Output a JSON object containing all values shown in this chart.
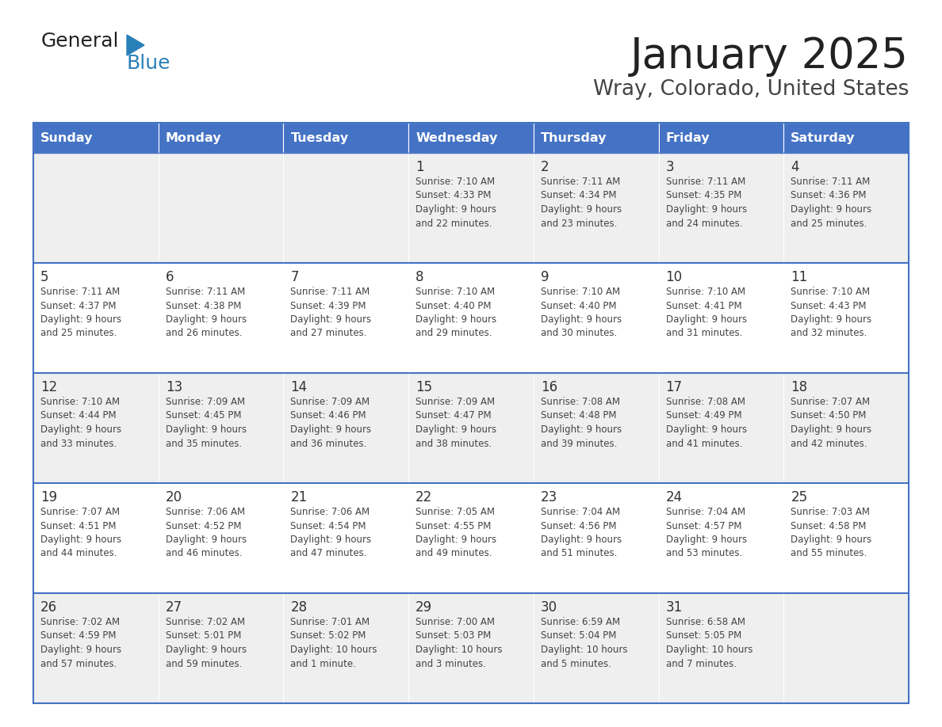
{
  "title": "January 2025",
  "subtitle": "Wray, Colorado, United States",
  "header_bg": "#4472C4",
  "header_text_color": "#FFFFFF",
  "header_days": [
    "Sunday",
    "Monday",
    "Tuesday",
    "Wednesday",
    "Thursday",
    "Friday",
    "Saturday"
  ],
  "row_bg_odd": "#EFEFEF",
  "row_bg_even": "#FFFFFF",
  "border_color": "#4472C4",
  "day_num_color": "#333333",
  "cell_text_color": "#444444",
  "title_color": "#222222",
  "subtitle_color": "#444444",
  "logo_general_color": "#222222",
  "logo_blue_color": "#2980B9",
  "logo_triangle_color": "#2980B9",
  "calendar": [
    [
      {
        "day": "",
        "info": ""
      },
      {
        "day": "",
        "info": ""
      },
      {
        "day": "",
        "info": ""
      },
      {
        "day": "1",
        "info": "Sunrise: 7:10 AM\nSunset: 4:33 PM\nDaylight: 9 hours\nand 22 minutes."
      },
      {
        "day": "2",
        "info": "Sunrise: 7:11 AM\nSunset: 4:34 PM\nDaylight: 9 hours\nand 23 minutes."
      },
      {
        "day": "3",
        "info": "Sunrise: 7:11 AM\nSunset: 4:35 PM\nDaylight: 9 hours\nand 24 minutes."
      },
      {
        "day": "4",
        "info": "Sunrise: 7:11 AM\nSunset: 4:36 PM\nDaylight: 9 hours\nand 25 minutes."
      }
    ],
    [
      {
        "day": "5",
        "info": "Sunrise: 7:11 AM\nSunset: 4:37 PM\nDaylight: 9 hours\nand 25 minutes."
      },
      {
        "day": "6",
        "info": "Sunrise: 7:11 AM\nSunset: 4:38 PM\nDaylight: 9 hours\nand 26 minutes."
      },
      {
        "day": "7",
        "info": "Sunrise: 7:11 AM\nSunset: 4:39 PM\nDaylight: 9 hours\nand 27 minutes."
      },
      {
        "day": "8",
        "info": "Sunrise: 7:10 AM\nSunset: 4:40 PM\nDaylight: 9 hours\nand 29 minutes."
      },
      {
        "day": "9",
        "info": "Sunrise: 7:10 AM\nSunset: 4:40 PM\nDaylight: 9 hours\nand 30 minutes."
      },
      {
        "day": "10",
        "info": "Sunrise: 7:10 AM\nSunset: 4:41 PM\nDaylight: 9 hours\nand 31 minutes."
      },
      {
        "day": "11",
        "info": "Sunrise: 7:10 AM\nSunset: 4:43 PM\nDaylight: 9 hours\nand 32 minutes."
      }
    ],
    [
      {
        "day": "12",
        "info": "Sunrise: 7:10 AM\nSunset: 4:44 PM\nDaylight: 9 hours\nand 33 minutes."
      },
      {
        "day": "13",
        "info": "Sunrise: 7:09 AM\nSunset: 4:45 PM\nDaylight: 9 hours\nand 35 minutes."
      },
      {
        "day": "14",
        "info": "Sunrise: 7:09 AM\nSunset: 4:46 PM\nDaylight: 9 hours\nand 36 minutes."
      },
      {
        "day": "15",
        "info": "Sunrise: 7:09 AM\nSunset: 4:47 PM\nDaylight: 9 hours\nand 38 minutes."
      },
      {
        "day": "16",
        "info": "Sunrise: 7:08 AM\nSunset: 4:48 PM\nDaylight: 9 hours\nand 39 minutes."
      },
      {
        "day": "17",
        "info": "Sunrise: 7:08 AM\nSunset: 4:49 PM\nDaylight: 9 hours\nand 41 minutes."
      },
      {
        "day": "18",
        "info": "Sunrise: 7:07 AM\nSunset: 4:50 PM\nDaylight: 9 hours\nand 42 minutes."
      }
    ],
    [
      {
        "day": "19",
        "info": "Sunrise: 7:07 AM\nSunset: 4:51 PM\nDaylight: 9 hours\nand 44 minutes."
      },
      {
        "day": "20",
        "info": "Sunrise: 7:06 AM\nSunset: 4:52 PM\nDaylight: 9 hours\nand 46 minutes."
      },
      {
        "day": "21",
        "info": "Sunrise: 7:06 AM\nSunset: 4:54 PM\nDaylight: 9 hours\nand 47 minutes."
      },
      {
        "day": "22",
        "info": "Sunrise: 7:05 AM\nSunset: 4:55 PM\nDaylight: 9 hours\nand 49 minutes."
      },
      {
        "day": "23",
        "info": "Sunrise: 7:04 AM\nSunset: 4:56 PM\nDaylight: 9 hours\nand 51 minutes."
      },
      {
        "day": "24",
        "info": "Sunrise: 7:04 AM\nSunset: 4:57 PM\nDaylight: 9 hours\nand 53 minutes."
      },
      {
        "day": "25",
        "info": "Sunrise: 7:03 AM\nSunset: 4:58 PM\nDaylight: 9 hours\nand 55 minutes."
      }
    ],
    [
      {
        "day": "26",
        "info": "Sunrise: 7:02 AM\nSunset: 4:59 PM\nDaylight: 9 hours\nand 57 minutes."
      },
      {
        "day": "27",
        "info": "Sunrise: 7:02 AM\nSunset: 5:01 PM\nDaylight: 9 hours\nand 59 minutes."
      },
      {
        "day": "28",
        "info": "Sunrise: 7:01 AM\nSunset: 5:02 PM\nDaylight: 10 hours\nand 1 minute."
      },
      {
        "day": "29",
        "info": "Sunrise: 7:00 AM\nSunset: 5:03 PM\nDaylight: 10 hours\nand 3 minutes."
      },
      {
        "day": "30",
        "info": "Sunrise: 6:59 AM\nSunset: 5:04 PM\nDaylight: 10 hours\nand 5 minutes."
      },
      {
        "day": "31",
        "info": "Sunrise: 6:58 AM\nSunset: 5:05 PM\nDaylight: 10 hours\nand 7 minutes."
      },
      {
        "day": "",
        "info": ""
      }
    ]
  ]
}
